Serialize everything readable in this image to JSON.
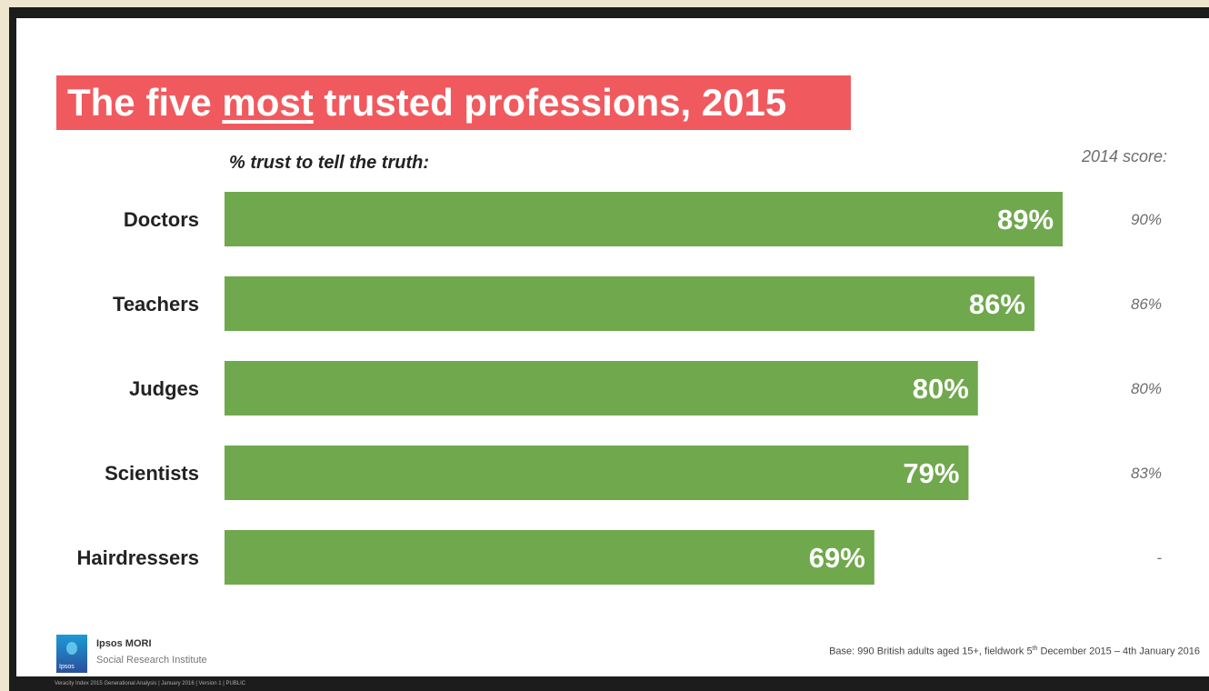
{
  "title": {
    "pre": "The five ",
    "emph": "most",
    "post": " trusted professions, 2015"
  },
  "subtitle": "% trust to tell the truth:",
  "prev_header": "2014 score:",
  "chart_data": {
    "type": "bar",
    "orientation": "horizontal",
    "categories": [
      "Doctors",
      "Teachers",
      "Judges",
      "Scientists",
      "Hairdressers"
    ],
    "series": [
      {
        "values": [
          89,
          86,
          80,
          79,
          69
        ],
        "labels": [
          "89%",
          "86%",
          "80%",
          "79%",
          "69%"
        ],
        "color": "#70a84d"
      }
    ],
    "prev_scores": [
      "90%",
      "86%",
      "80%",
      "83%",
      "-"
    ],
    "xlim": [
      0,
      100
    ],
    "grid": false,
    "legend": "none"
  },
  "footer": {
    "brand": "Ipsos MORI",
    "sub": "Social Research Institute",
    "logo_text": "Ipsos",
    "base_pre": "Base: 990 British adults aged 15+, fieldwork 5",
    "base_sup": "th",
    "base_post": " December 2015 – 4th January 2016",
    "strip": "Veracity Index 2015 Generational Analysis | January 2016 | Version 1 | PUBLIC"
  },
  "colors": {
    "title_bg": "#f05a5e",
    "bar": "#70a84d",
    "prev_text": "#6d6d6d"
  }
}
